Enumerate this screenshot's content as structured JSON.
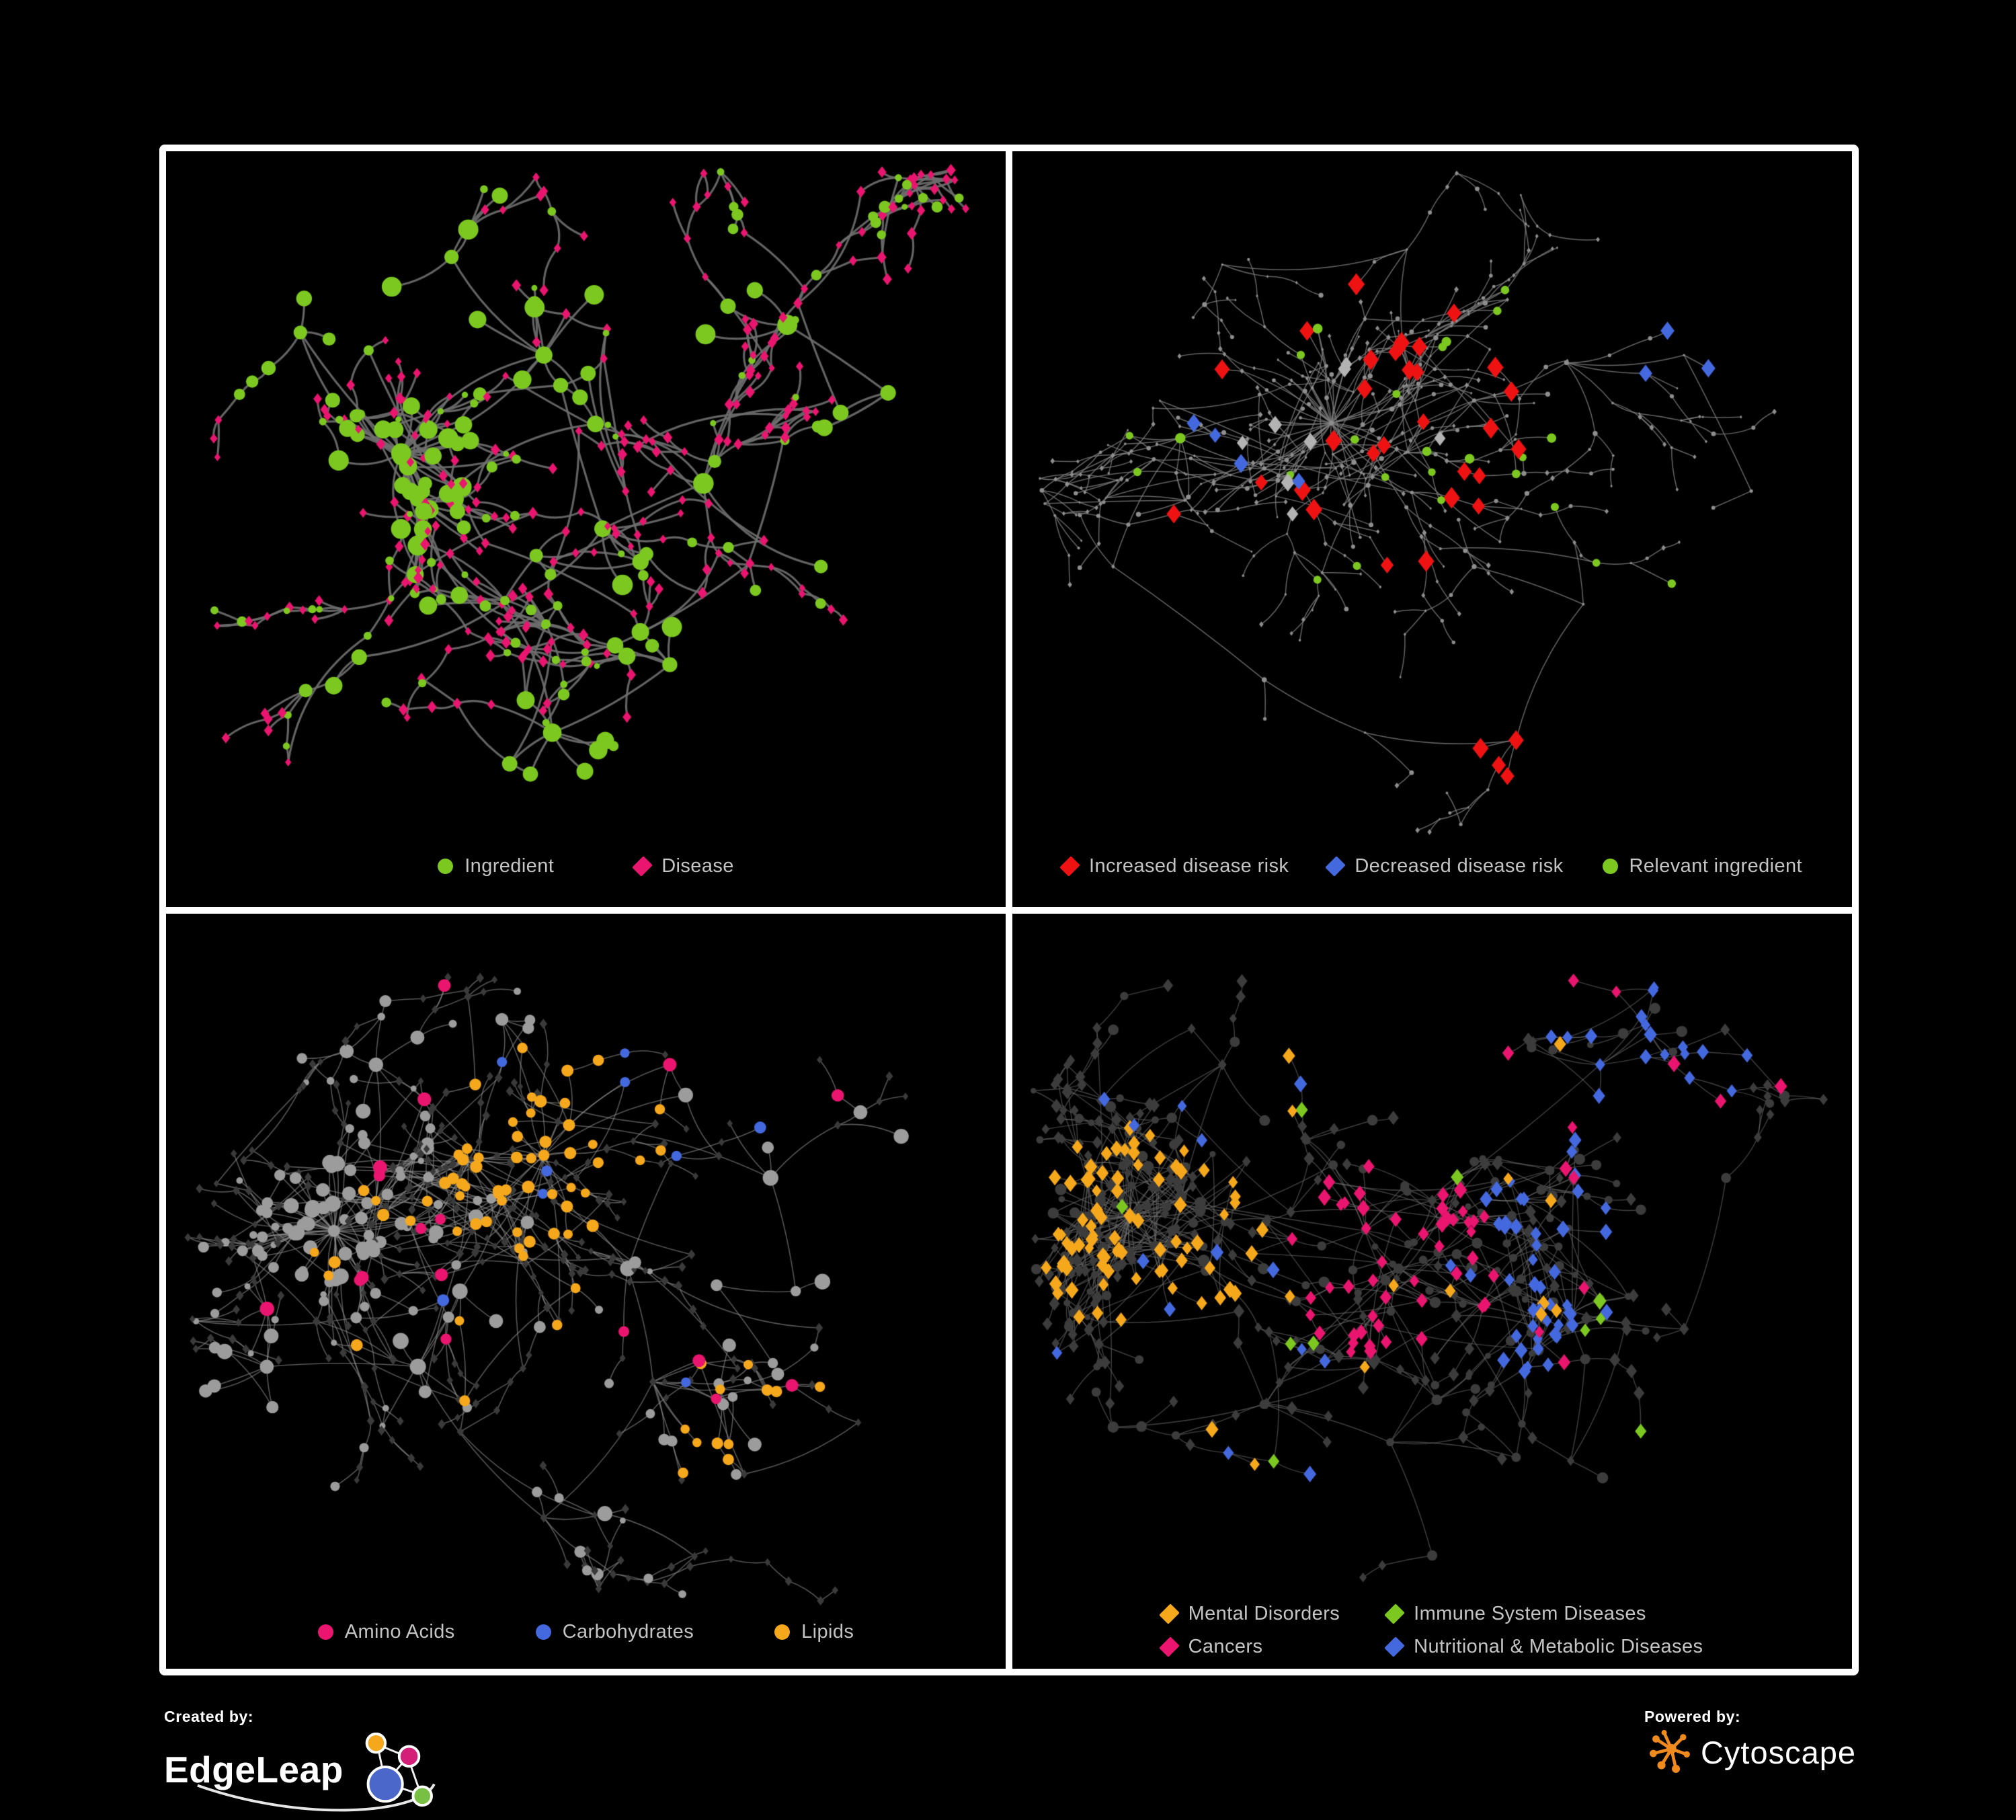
{
  "figure": {
    "background": "#000000",
    "panel_border": "#FFFFFF",
    "legend_text_color": "#C4C4C4"
  },
  "footer": {
    "created_by_label": "Created by:",
    "created_by_name": "EdgeLeap",
    "powered_by_label": "Powered by:",
    "powered_by_name": "Cytoscape",
    "cytoscape_orange": "#F08A1D",
    "edgeleap_node_colors": [
      "#F6A81C",
      "#D31F77",
      "#4A67C9",
      "#77C043"
    ]
  },
  "chart_data": [
    {
      "id": "ingredient-disease-network",
      "type": "network",
      "legend": [
        {
          "label": "Ingredient",
          "shape": "circle",
          "color": "#7CC820"
        },
        {
          "label": "Disease",
          "shape": "diamond",
          "color": "#E9156F"
        }
      ],
      "legend_layout": "row",
      "gen": {
        "seed": 7,
        "nodes": 440,
        "edgeLen": 0.034,
        "chainProb": 0.42,
        "hubBias": 2.1,
        "cross": 46,
        "clusters": [
          [
            0.28,
            0.4
          ],
          [
            0.3,
            0.46
          ],
          [
            0.45,
            0.27
          ],
          [
            0.47,
            0.31
          ],
          [
            0.52,
            0.5
          ],
          [
            0.4,
            0.6
          ],
          [
            0.46,
            0.77
          ],
          [
            0.23,
            0.67
          ],
          [
            0.64,
            0.44
          ],
          [
            0.74,
            0.23
          ],
          [
            0.86,
            0.32
          ],
          [
            0.16,
            0.24
          ],
          [
            0.6,
            0.68
          ],
          [
            0.34,
            0.14
          ],
          [
            0.78,
            0.55
          ]
        ],
        "base": {
          "circleProb": 0.3,
          "hubCircleProb": 0.85,
          "circleColor": "#7CC820",
          "diamondColor": "#E9156F",
          "circleR": [
            5.5,
            14
          ],
          "diamondR": [
            5,
            8
          ]
        },
        "highlights": [],
        "style": {
          "edgeColor": "#6E6E6E",
          "edgeWidth": 3.2,
          "edgeAlpha": 0.9,
          "curv": 0.45
        }
      }
    },
    {
      "id": "disease-risk-network",
      "type": "network",
      "legend": [
        {
          "label": "Increased disease risk",
          "shape": "diamond",
          "color": "#EE1312"
        },
        {
          "label": "Decreased disease risk",
          "shape": "diamond",
          "color": "#4468DE"
        },
        {
          "label": "Relevant ingredient",
          "shape": "circle",
          "color": "#7CC820"
        }
      ],
      "legend_layout": "row-tight",
      "gen": {
        "seed": 13,
        "nodes": 520,
        "edgeLen": 0.034,
        "chainProb": 0.5,
        "hubBias": 2.3,
        "cross": 40,
        "clusters": [
          [
            0.38,
            0.36
          ],
          [
            0.43,
            0.4
          ],
          [
            0.3,
            0.42
          ],
          [
            0.47,
            0.13
          ],
          [
            0.55,
            0.33
          ],
          [
            0.66,
            0.28
          ],
          [
            0.8,
            0.27
          ],
          [
            0.2,
            0.38
          ],
          [
            0.12,
            0.55
          ],
          [
            0.3,
            0.7
          ],
          [
            0.42,
            0.77
          ],
          [
            0.6,
            0.78
          ],
          [
            0.68,
            0.6
          ],
          [
            0.88,
            0.45
          ],
          [
            0.25,
            0.15
          ],
          [
            0.55,
            0.55
          ]
        ],
        "base": {
          "dots": true,
          "dotR": 2.4,
          "dotColor": "#8E8E8E",
          "circleProb": 0.3,
          "circleColor": "#8E8E8E",
          "diamondColor": "#8E8E8E",
          "circleR": [
            3,
            4
          ],
          "diamondR": [
            3,
            4
          ]
        },
        "highlights": [
          {
            "applyTo": "any",
            "shape": "diamond",
            "color": "#EE1312",
            "size": 11.5,
            "count": 30,
            "x": 0.42,
            "y": 0.4,
            "r": 0.25
          },
          {
            "applyTo": "any",
            "shape": "diamond",
            "color": "#EE1312",
            "size": 11.5,
            "count": 5,
            "x": 0.66,
            "y": 0.74,
            "r": 0.12
          },
          {
            "applyTo": "any",
            "shape": "diamond",
            "color": "#4468DE",
            "size": 11,
            "count": 3,
            "x": 0.8,
            "y": 0.27,
            "r": 0.06
          },
          {
            "applyTo": "any",
            "shape": "diamond",
            "color": "#4468DE",
            "size": 11,
            "count": 4,
            "x": 0.27,
            "y": 0.42,
            "r": 0.09
          },
          {
            "applyTo": "any",
            "shape": "diamond",
            "color": "#B3B3B3",
            "size": 10,
            "count": 8,
            "x": 0.46,
            "y": 0.44,
            "r": 0.22
          },
          {
            "applyTo": "any",
            "shape": "circle",
            "color": "#7CC820",
            "size": 6.5,
            "count": 22,
            "x": 0.4,
            "y": 0.38,
            "r": 0.28
          },
          {
            "applyTo": "any",
            "shape": "circle",
            "color": "#7CC820",
            "size": 6.5,
            "count": 3,
            "x": 0.72,
            "y": 0.55,
            "r": 0.2
          }
        ],
        "style": {
          "edgeColor": "#7D7D7D",
          "edgeWidth": 1.5,
          "edgeAlpha": 0.8,
          "curv": 0.25
        }
      }
    },
    {
      "id": "ingredient-classes-network",
      "type": "network",
      "legend": [
        {
          "label": "Amino Acids",
          "shape": "circle",
          "color": "#E9156F"
        },
        {
          "label": "Carbohydrates",
          "shape": "circle",
          "color": "#4468DE"
        },
        {
          "label": "Lipids",
          "shape": "circle",
          "color": "#F6A81C"
        }
      ],
      "legend_layout": "row",
      "gen": {
        "seed": 21,
        "nodes": 560,
        "edgeLen": 0.033,
        "chainProb": 0.35,
        "hubBias": 2.6,
        "cross": 110,
        "clusters": [
          [
            0.2,
            0.42
          ],
          [
            0.25,
            0.38
          ],
          [
            0.4,
            0.38
          ],
          [
            0.45,
            0.32
          ],
          [
            0.48,
            0.28
          ],
          [
            0.35,
            0.5
          ],
          [
            0.3,
            0.6
          ],
          [
            0.45,
            0.8
          ],
          [
            0.58,
            0.62
          ],
          [
            0.66,
            0.63
          ],
          [
            0.72,
            0.35
          ],
          [
            0.8,
            0.28
          ],
          [
            0.6,
            0.2
          ],
          [
            0.25,
            0.2
          ],
          [
            0.12,
            0.6
          ],
          [
            0.55,
            0.47
          ],
          [
            0.75,
            0.5
          ],
          [
            0.4,
            0.14
          ]
        ],
        "base": {
          "circleProb": 0.28,
          "hubCircleProb": 0.9,
          "circleColor": "#9C9C9C",
          "diamondColor": "#3A3A3A",
          "circleR": [
            5.5,
            11
          ],
          "diamondR": [
            4.5,
            6.5
          ]
        },
        "highlights": [
          {
            "applyTo": "circle",
            "shape": "circle",
            "color": "#F6A81C",
            "size": 8,
            "count": 48,
            "x": 0.46,
            "y": 0.31,
            "r": 0.14
          },
          {
            "applyTo": "circle",
            "shape": "circle",
            "color": "#F6A81C",
            "size": 8,
            "count": 22,
            "x": 0.45,
            "y": 0.52,
            "r": 0.3
          },
          {
            "applyTo": "circle",
            "shape": "circle",
            "color": "#F6A81C",
            "size": 8,
            "count": 6,
            "x": 0.68,
            "y": 0.62,
            "r": 0.1
          },
          {
            "applyTo": "circle",
            "shape": "circle",
            "color": "#4468DE",
            "size": 8,
            "count": 12,
            "x": 0.49,
            "y": 0.27,
            "r": 0.12
          },
          {
            "applyTo": "circle",
            "shape": "circle",
            "color": "#4468DE",
            "size": 8,
            "count": 4,
            "x": 0.6,
            "y": 0.5,
            "r": 0.3
          },
          {
            "applyTo": "circle",
            "shape": "circle",
            "color": "#E9156F",
            "size": 9,
            "count": 17,
            "x": 0.45,
            "y": 0.52,
            "r": 0.45
          }
        ],
        "style": {
          "edgeColor": "#8F8F8F",
          "edgeWidth": 1.6,
          "edgeAlpha": 0.6,
          "curv": 0.3
        }
      }
    },
    {
      "id": "disease-classes-network",
      "type": "network",
      "legend": [
        {
          "label": "Mental Disorders",
          "shape": "diamond",
          "color": "#F6A81C"
        },
        {
          "label": "Immune System Diseases",
          "shape": "diamond",
          "color": "#7CC820"
        },
        {
          "label": "Cancers",
          "shape": "diamond",
          "color": "#E9156F"
        },
        {
          "label": "Nutritional & Metabolic Diseases",
          "shape": "diamond",
          "color": "#4468DE"
        }
      ],
      "legend_layout": "grid2",
      "gen": {
        "seed": 33,
        "nodes": 620,
        "edgeLen": 0.032,
        "chainProb": 0.33,
        "hubBias": 2.6,
        "cross": 150,
        "clusters": [
          [
            0.14,
            0.4
          ],
          [
            0.17,
            0.44
          ],
          [
            0.2,
            0.38
          ],
          [
            0.42,
            0.42
          ],
          [
            0.46,
            0.47
          ],
          [
            0.5,
            0.38
          ],
          [
            0.56,
            0.52
          ],
          [
            0.6,
            0.5
          ],
          [
            0.7,
            0.2
          ],
          [
            0.76,
            0.16
          ],
          [
            0.64,
            0.34
          ],
          [
            0.8,
            0.55
          ],
          [
            0.3,
            0.65
          ],
          [
            0.45,
            0.7
          ],
          [
            0.6,
            0.72
          ],
          [
            0.25,
            0.2
          ],
          [
            0.35,
            0.3
          ],
          [
            0.85,
            0.35
          ],
          [
            0.12,
            0.68
          ],
          [
            0.5,
            0.85
          ]
        ],
        "base": {
          "circleProb": 0.22,
          "hubCircleProb": 0.6,
          "circleColor": "#3C3C3C",
          "diamondColor": "#3C3C3C",
          "circleR": [
            5,
            8
          ],
          "diamondR": [
            6,
            9
          ]
        },
        "highlights": [
          {
            "applyTo": "diamond",
            "shape": "diamond",
            "color": "#F6A81C",
            "size": 9,
            "count": 80,
            "x": 0.16,
            "y": 0.42,
            "r": 0.14
          },
          {
            "applyTo": "diamond",
            "shape": "diamond",
            "color": "#F6A81C",
            "size": 9,
            "count": 14,
            "x": 0.45,
            "y": 0.5,
            "r": 0.4
          },
          {
            "applyTo": "diamond",
            "shape": "diamond",
            "color": "#E9156F",
            "size": 9,
            "count": 48,
            "x": 0.45,
            "y": 0.46,
            "r": 0.13
          },
          {
            "applyTo": "diamond",
            "shape": "diamond",
            "color": "#E9156F",
            "size": 9,
            "count": 12,
            "x": 0.72,
            "y": 0.25,
            "r": 0.35
          },
          {
            "applyTo": "diamond",
            "shape": "diamond",
            "color": "#4468DE",
            "size": 9,
            "count": 26,
            "x": 0.59,
            "y": 0.52,
            "r": 0.09
          },
          {
            "applyTo": "diamond",
            "shape": "diamond",
            "color": "#4468DE",
            "size": 9,
            "count": 18,
            "x": 0.76,
            "y": 0.17,
            "r": 0.13
          },
          {
            "applyTo": "diamond",
            "shape": "diamond",
            "color": "#4468DE",
            "size": 9,
            "count": 14,
            "x": 0.66,
            "y": 0.37,
            "r": 0.1
          },
          {
            "applyTo": "diamond",
            "shape": "diamond",
            "color": "#4468DE",
            "size": 9,
            "count": 22,
            "x": 0.5,
            "y": 0.5,
            "r": 0.48
          },
          {
            "applyTo": "diamond",
            "shape": "diamond",
            "color": "#7CC820",
            "size": 9,
            "count": 10,
            "x": 0.48,
            "y": 0.45,
            "r": 0.38
          }
        ],
        "style": {
          "edgeColor": "#6A6A6A",
          "edgeWidth": 1.4,
          "edgeAlpha": 0.6,
          "curv": 0.25
        }
      }
    }
  ]
}
